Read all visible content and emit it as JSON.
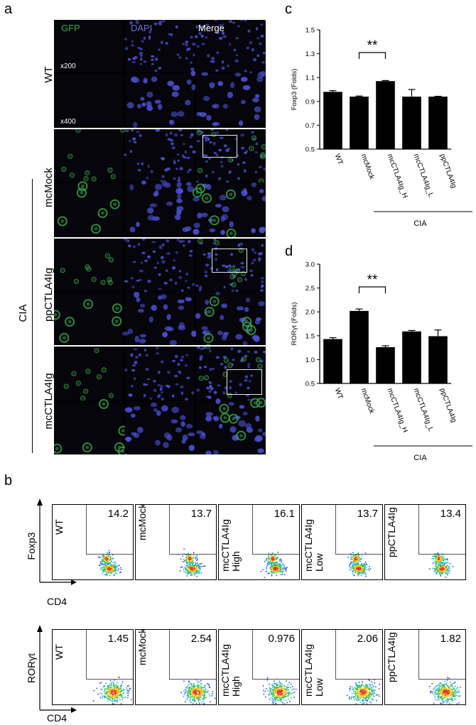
{
  "panels": {
    "a": "a",
    "b": "b",
    "c": "c",
    "d": "d"
  },
  "microscopy": {
    "columns": [
      "GFP",
      "DAPI",
      "Merge"
    ],
    "column_colors": [
      "#3fa84f",
      "#6f6fd6",
      "#ffffff"
    ],
    "magnifications": [
      "x200",
      "x400"
    ],
    "rows": [
      "WT",
      "mcMock",
      "ppCTLA4Ig",
      "mcCTLA4Ig"
    ],
    "group_label": "CIA"
  },
  "flow": {
    "top_row": {
      "y_axis": "Foxp3",
      "x_axis": "CD4",
      "samples": [
        {
          "name": "WT",
          "value": "14.2"
        },
        {
          "name": "mcMock",
          "value": "13.7"
        },
        {
          "name": "mcCTLA4Ig\nHigh",
          "value": "16.1"
        },
        {
          "name": "mcCTLA4Ig\nLow",
          "value": "13.7"
        },
        {
          "name": "ppCTLA4Ig",
          "value": "13.4"
        }
      ]
    },
    "bottom_row": {
      "y_axis": "RORγt",
      "x_axis": "CD4",
      "samples": [
        {
          "name": "WT",
          "value": "1.45"
        },
        {
          "name": "mcMock",
          "value": "2.54"
        },
        {
          "name": "mcCTLA4Ig\nHigh",
          "value": "0.976"
        },
        {
          "name": "mcCTLA4Ig\nLow",
          "value": "2.06"
        },
        {
          "name": "ppCTLA4Ig",
          "value": "1.82"
        }
      ]
    }
  },
  "chart_data": [
    {
      "type": "bar",
      "panel": "c",
      "categories": [
        "WT",
        "mcMock",
        "mcCTLA4Ig_H",
        "mcCTLA4Ig_L",
        "ppCTLA4Ig"
      ],
      "values": [
        0.98,
        0.94,
        1.07,
        0.94,
        0.94
      ],
      "errors": [
        0.01,
        0.005,
        0.005,
        0.06,
        0.003
      ],
      "ylabel": "Foxp3 (Folds)",
      "ylim": [
        0.5,
        1.5
      ],
      "yticks": [
        "0.5",
        "0.7",
        "0.9",
        "1.1",
        "1.3",
        "1.5"
      ],
      "significance": {
        "from": 1,
        "to": 2,
        "label": "**"
      },
      "group_label": "CIA",
      "group_from": 2,
      "group_to": 4
    },
    {
      "type": "bar",
      "panel": "d",
      "categories": [
        "WT",
        "mcMock",
        "mcCTLA4Ig_H",
        "mcCTLA4Ig_L",
        "ppCTLA4Ig"
      ],
      "values": [
        1.43,
        2.02,
        1.26,
        1.59,
        1.49
      ],
      "errors": [
        0.03,
        0.04,
        0.03,
        0.02,
        0.13
      ],
      "ylabel": "RORγt (Folds)",
      "ylim": [
        0.5,
        3.0
      ],
      "yticks": [
        "0.5",
        "1.0",
        "1.5",
        "2.0",
        "2.5",
        "3.0"
      ],
      "significance": {
        "from": 1,
        "to": 2,
        "label": "**"
      },
      "group_label": "CIA",
      "group_from": 2,
      "group_to": 4
    }
  ]
}
